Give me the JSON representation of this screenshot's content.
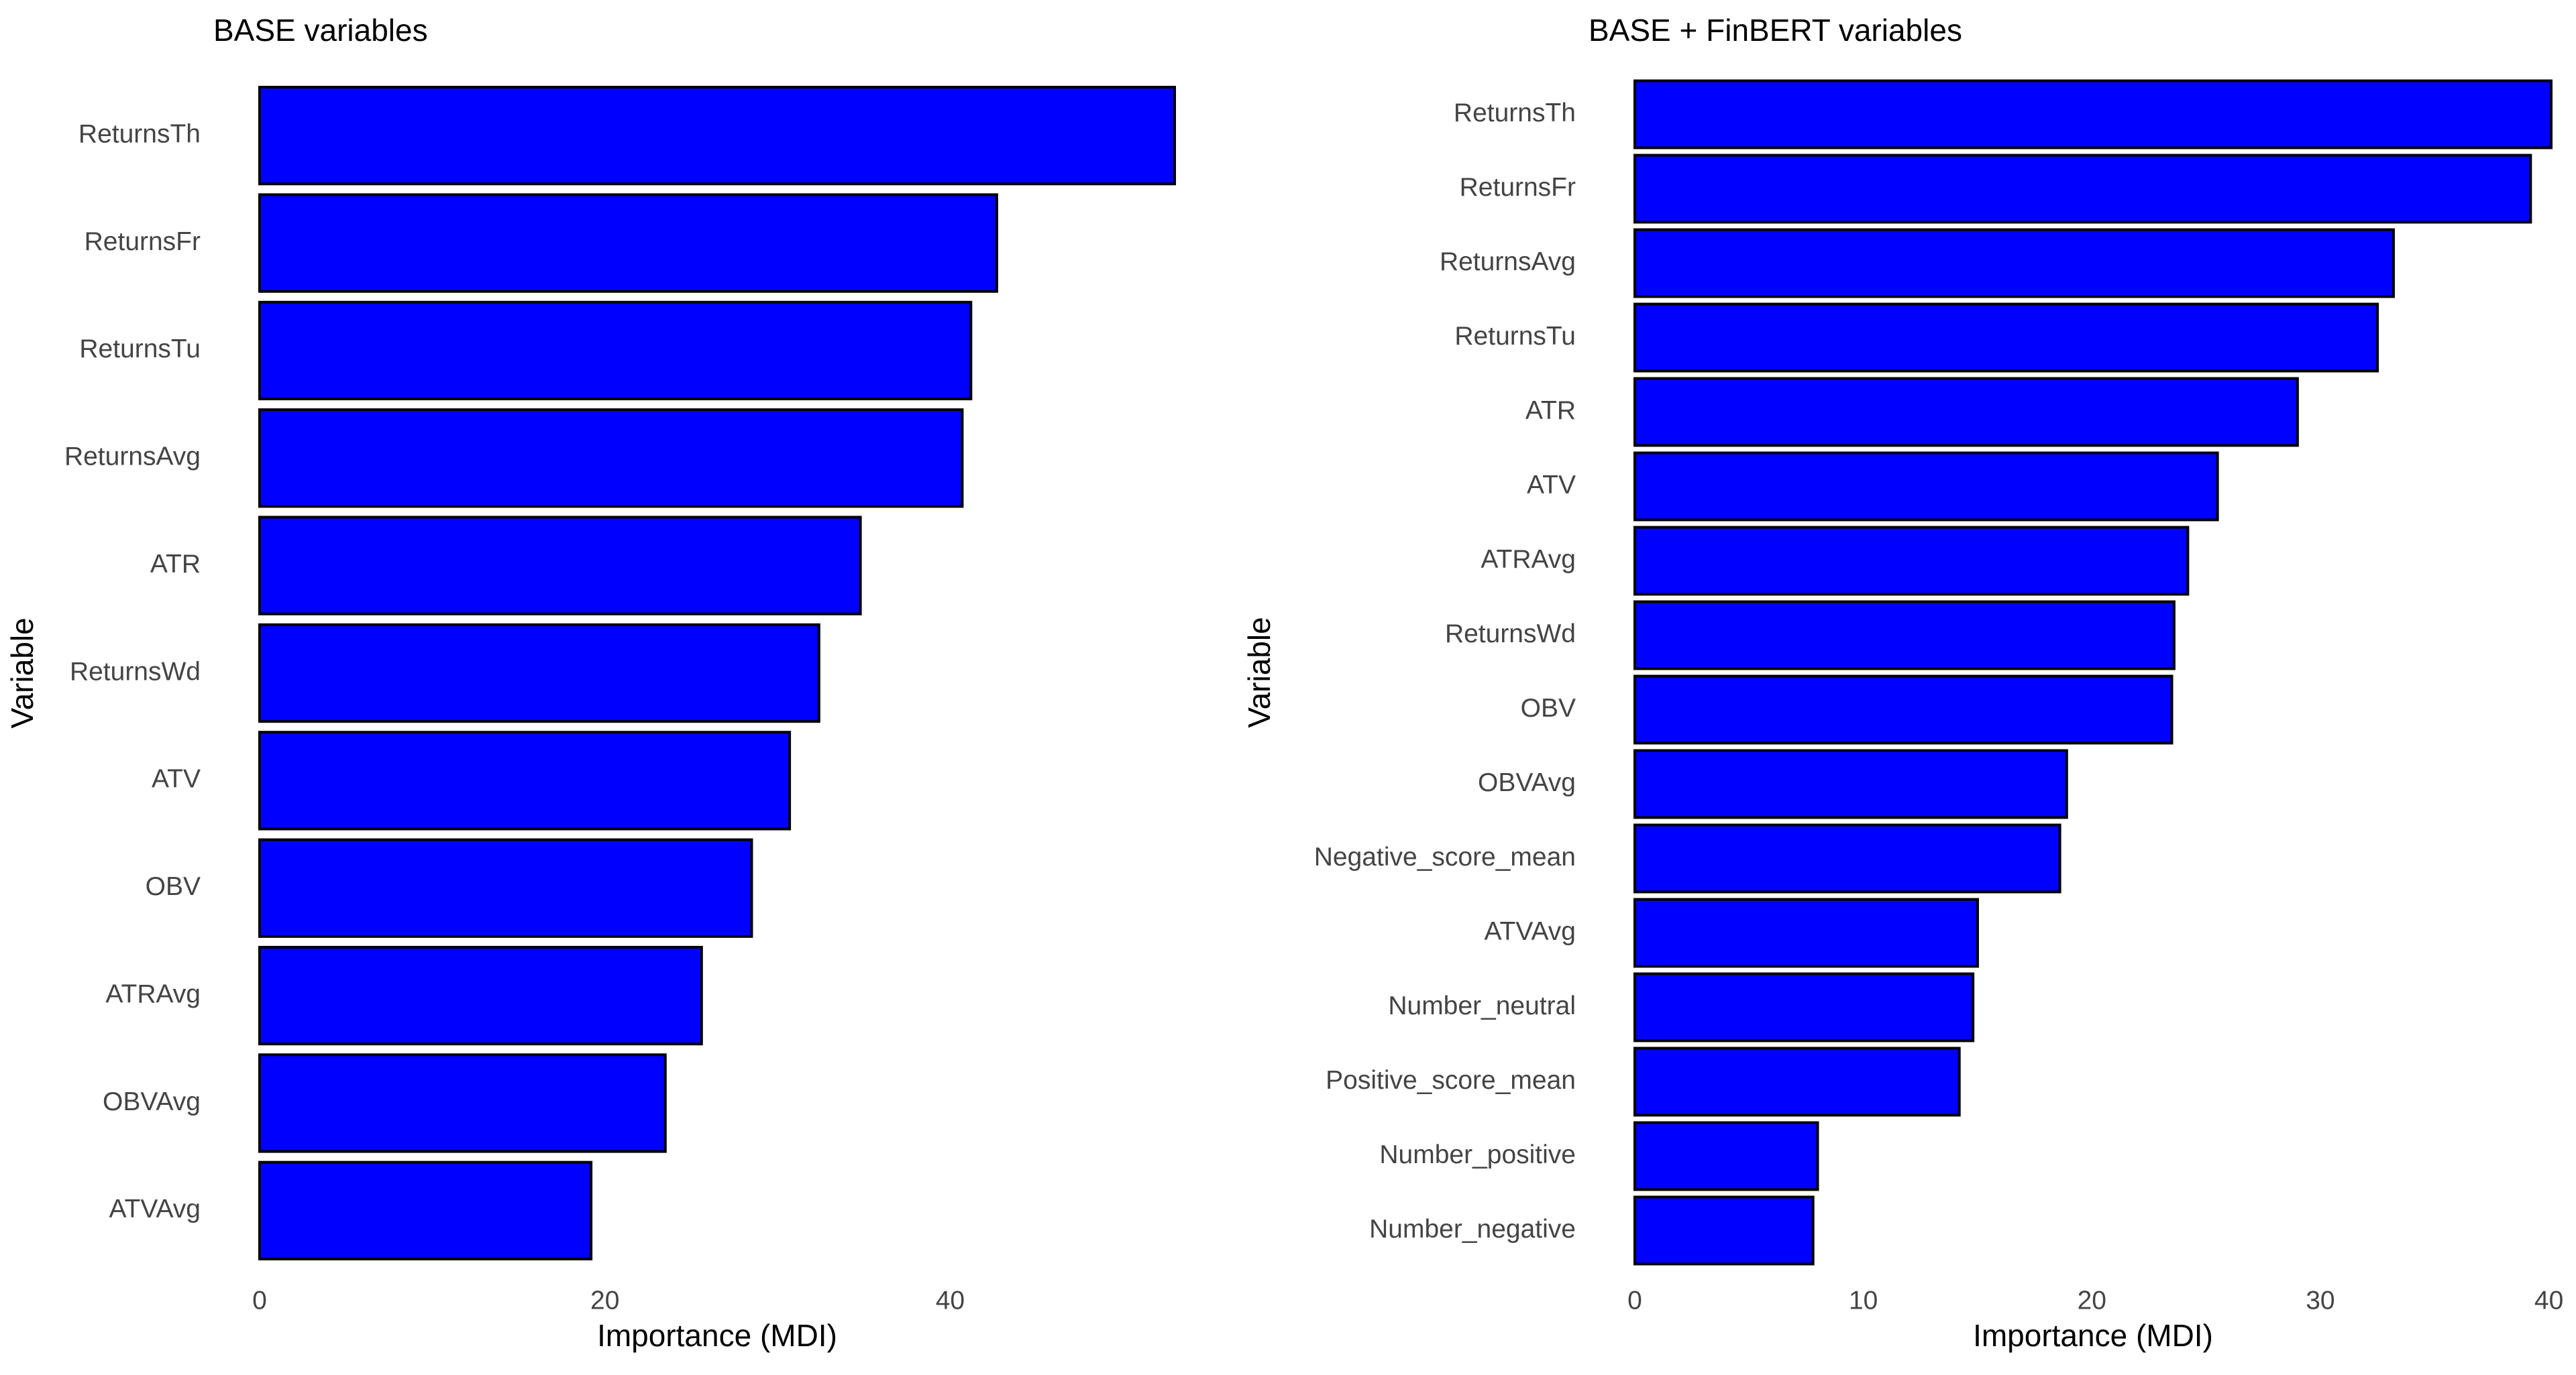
{
  "chart_data": [
    {
      "type": "bar",
      "orientation": "horizontal",
      "title": "BASE variables",
      "x_label": "Importance (MDI)",
      "y_label": "Variable",
      "categories": [
        "ReturnsTh",
        "ReturnsFr",
        "ReturnsTu",
        "ReturnsAvg",
        "ATR",
        "ReturnsWd",
        "ATV",
        "OBV",
        "ATRAvg",
        "OBVAvg",
        "ATVAvg"
      ],
      "values": [
        53.0,
        42.7,
        41.2,
        40.7,
        34.8,
        32.4,
        30.7,
        28.5,
        25.6,
        23.5,
        19.2
      ],
      "color": "#0000ff",
      "xlim": [
        0,
        53
      ],
      "xticks": [
        0,
        20,
        40
      ]
    },
    {
      "type": "bar",
      "orientation": "horizontal",
      "title": "BASE + FinBERT variables",
      "x_label": "Importance (MDI)",
      "y_label": "Variable",
      "categories": [
        "ReturnsTh",
        "ReturnsFr",
        "ReturnsAvg",
        "ReturnsTu",
        "ATR",
        "ATV",
        "ATRAvg",
        "ReturnsWd",
        "OBV",
        "OBVAvg",
        "Negative_score_mean",
        "ATVAvg",
        "Number_neutral",
        "Positive_score_mean",
        "Number_positive",
        "Number_negative"
      ],
      "values": [
        40.1,
        39.2,
        33.2,
        32.5,
        29.0,
        25.5,
        24.2,
        23.6,
        23.5,
        18.9,
        18.6,
        15.0,
        14.8,
        14.2,
        8.0,
        7.8
      ],
      "color": "#0000ff",
      "xlim": [
        0,
        40.1
      ],
      "xticks": [
        0,
        10,
        20,
        30,
        40
      ]
    }
  ]
}
